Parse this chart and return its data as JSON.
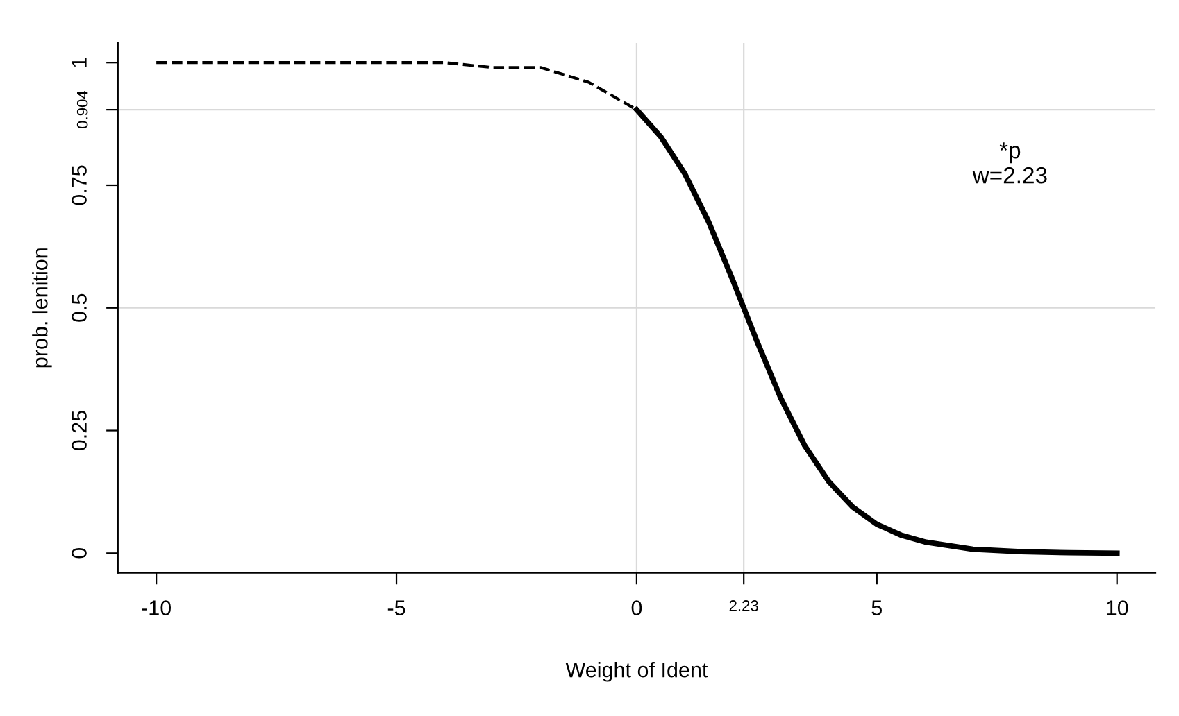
{
  "chart_data": {
    "type": "line",
    "xlabel": "Weight of Ident",
    "ylabel": "prob. lenition",
    "series": [
      {
        "color": "#000000",
        "line_style": "dashed",
        "x": [
          -10,
          -8,
          -6,
          -4,
          -3,
          -2,
          -1,
          0
        ],
        "values": [
          1.0,
          1.0,
          1.0,
          1.0,
          0.99,
          0.99,
          0.96,
          0.904
        ]
      },
      {
        "color": "#000000",
        "line_style": "solid",
        "x": [
          0,
          0.5,
          1,
          1.5,
          2,
          2.5,
          3,
          3.5,
          4,
          4.5,
          5,
          5.5,
          6,
          7,
          8,
          9,
          10
        ],
        "values": [
          0.904,
          0.849,
          0.774,
          0.675,
          0.557,
          0.433,
          0.316,
          0.219,
          0.146,
          0.094,
          0.059,
          0.037,
          0.023,
          0.008,
          0.003,
          0.001,
          0.0
        ]
      }
    ],
    "xlim": [
      -10.8,
      10.8
    ],
    "ylim": [
      -0.04,
      1.04
    ],
    "xticks": [
      -10,
      -5,
      0,
      {
        "value": 2.23,
        "label": "2.23"
      },
      5,
      10
    ],
    "yticks": [
      0,
      0.25,
      0.5,
      0.75,
      {
        "value": 0.904,
        "label": "0.904"
      },
      1
    ],
    "ref_lines": [
      {
        "axis": "x",
        "value": 0,
        "color": "#d9d9d9"
      },
      {
        "axis": "x",
        "value": 2.23,
        "color": "#d9d9d9"
      },
      {
        "axis": "y",
        "value": 0.904,
        "color": "#d9d9d9"
      },
      {
        "axis": "y",
        "value": 0.5,
        "color": "#d9d9d9"
      }
    ],
    "annotations": [
      "*p\nw=2.23"
    ],
    "grid": false,
    "legend": false
  }
}
